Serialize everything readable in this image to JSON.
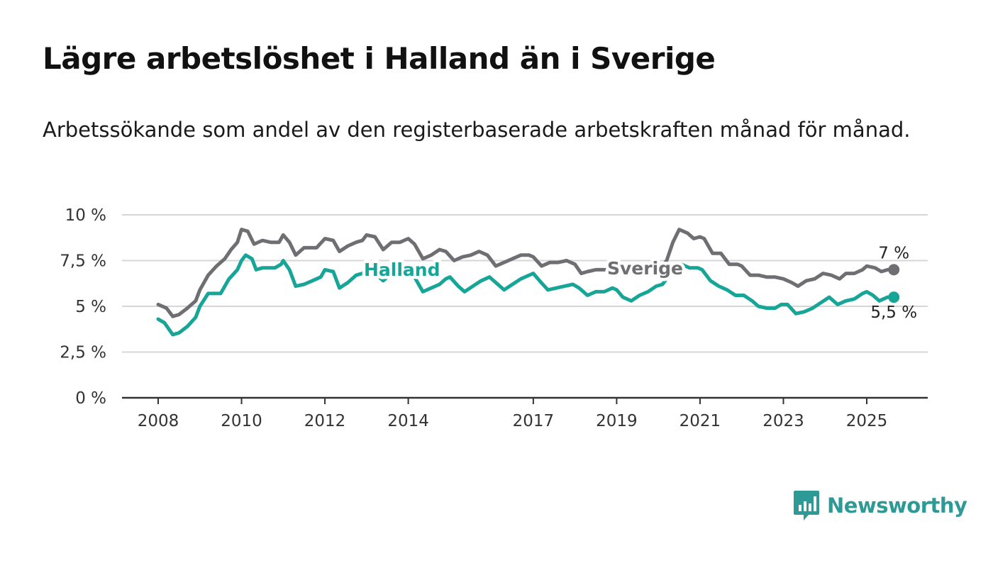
{
  "title": "Lägre arbetslöshet i Halland än i Sverige",
  "subtitle": "Arbetssökande som andel av den registerbaserade arbetskraften månad för månad.",
  "brand": "Newsworthy",
  "colors": {
    "halland": "#17a597",
    "sverige": "#6f6e73",
    "grid": "#d6d6d6",
    "axis": "#333333",
    "brand": "#2e9a96"
  },
  "chart_data": {
    "type": "line",
    "title": "Lägre arbetslöshet i Halland än i Sverige",
    "subtitle": "Arbetssökande som andel av den registerbaserade arbetskraften månad för månad.",
    "xlabel": "",
    "ylabel": "",
    "ylim": [
      0,
      10
    ],
    "xlim": [
      2007.2,
      2026.5
    ],
    "yticks": [
      0,
      2.5,
      5,
      7.5,
      10
    ],
    "ytick_labels": [
      "0 %",
      "2,5 %",
      "5 %",
      "7,5 %",
      "10 %"
    ],
    "xticks": [
      2008,
      2010,
      2012,
      2014,
      2017,
      2019,
      2021,
      2023,
      2025
    ],
    "xtick_labels": [
      "2008",
      "2010",
      "2012",
      "2014",
      "2017",
      "2019",
      "2021",
      "2023",
      "2025"
    ],
    "grid": "horizontal",
    "series": [
      {
        "name": "Sverige",
        "color": "#6f6e73",
        "end_label": "7 %",
        "points": [
          [
            2008.0,
            5.1
          ],
          [
            2008.2,
            4.9
          ],
          [
            2008.35,
            4.45
          ],
          [
            2008.5,
            4.55
          ],
          [
            2008.7,
            4.9
          ],
          [
            2008.9,
            5.3
          ],
          [
            2009.0,
            5.9
          ],
          [
            2009.2,
            6.7
          ],
          [
            2009.4,
            7.2
          ],
          [
            2009.6,
            7.6
          ],
          [
            2009.75,
            8.1
          ],
          [
            2009.9,
            8.5
          ],
          [
            2010.0,
            9.2
          ],
          [
            2010.15,
            9.1
          ],
          [
            2010.3,
            8.4
          ],
          [
            2010.5,
            8.6
          ],
          [
            2010.7,
            8.5
          ],
          [
            2010.9,
            8.5
          ],
          [
            2011.0,
            8.9
          ],
          [
            2011.15,
            8.5
          ],
          [
            2011.3,
            7.8
          ],
          [
            2011.5,
            8.2
          ],
          [
            2011.8,
            8.2
          ],
          [
            2012.0,
            8.7
          ],
          [
            2012.2,
            8.6
          ],
          [
            2012.35,
            8.0
          ],
          [
            2012.55,
            8.3
          ],
          [
            2012.75,
            8.5
          ],
          [
            2012.9,
            8.6
          ],
          [
            2013.0,
            8.9
          ],
          [
            2013.2,
            8.8
          ],
          [
            2013.4,
            8.1
          ],
          [
            2013.6,
            8.5
          ],
          [
            2013.8,
            8.5
          ],
          [
            2014.0,
            8.7
          ],
          [
            2014.15,
            8.4
          ],
          [
            2014.35,
            7.6
          ],
          [
            2014.55,
            7.8
          ],
          [
            2014.75,
            8.1
          ],
          [
            2014.9,
            8.0
          ],
          [
            2015.1,
            7.5
          ],
          [
            2015.3,
            7.7
          ],
          [
            2015.5,
            7.8
          ],
          [
            2015.7,
            8.0
          ],
          [
            2015.9,
            7.8
          ],
          [
            2016.1,
            7.2
          ],
          [
            2016.3,
            7.4
          ],
          [
            2016.5,
            7.6
          ],
          [
            2016.7,
            7.8
          ],
          [
            2016.9,
            7.8
          ],
          [
            2017.0,
            7.7
          ],
          [
            2017.2,
            7.2
          ],
          [
            2017.4,
            7.4
          ],
          [
            2017.6,
            7.4
          ],
          [
            2017.8,
            7.5
          ],
          [
            2018.0,
            7.3
          ],
          [
            2018.15,
            6.8
          ],
          [
            2018.3,
            6.9
          ],
          [
            2018.5,
            7.0
          ],
          [
            2018.7,
            7.0
          ],
          [
            2018.9,
            7.0
          ],
          [
            2019.0,
            6.9
          ],
          [
            2019.3,
            7.0
          ],
          [
            2019.5,
            6.9
          ],
          [
            2019.7,
            7.0
          ],
          [
            2019.9,
            7.1
          ],
          [
            2020.0,
            7.0
          ],
          [
            2020.2,
            7.5
          ],
          [
            2020.35,
            8.5
          ],
          [
            2020.5,
            9.2
          ],
          [
            2020.7,
            9.0
          ],
          [
            2020.85,
            8.7
          ],
          [
            2021.0,
            8.8
          ],
          [
            2021.1,
            8.7
          ],
          [
            2021.3,
            7.9
          ],
          [
            2021.5,
            7.9
          ],
          [
            2021.7,
            7.3
          ],
          [
            2021.9,
            7.3
          ],
          [
            2022.0,
            7.2
          ],
          [
            2022.2,
            6.7
          ],
          [
            2022.4,
            6.7
          ],
          [
            2022.6,
            6.6
          ],
          [
            2022.8,
            6.6
          ],
          [
            2023.0,
            6.5
          ],
          [
            2023.2,
            6.3
          ],
          [
            2023.35,
            6.1
          ],
          [
            2023.55,
            6.4
          ],
          [
            2023.75,
            6.5
          ],
          [
            2023.95,
            6.8
          ],
          [
            2024.15,
            6.7
          ],
          [
            2024.35,
            6.5
          ],
          [
            2024.5,
            6.8
          ],
          [
            2024.7,
            6.8
          ],
          [
            2024.9,
            7.0
          ],
          [
            2025.0,
            7.2
          ],
          [
            2025.2,
            7.1
          ],
          [
            2025.35,
            6.9
          ],
          [
            2025.5,
            7.0
          ],
          [
            2025.65,
            7.0
          ]
        ]
      },
      {
        "name": "Halland",
        "color": "#17a597",
        "end_label": "5,5 %",
        "points": [
          [
            2008.0,
            4.3
          ],
          [
            2008.15,
            4.1
          ],
          [
            2008.35,
            3.45
          ],
          [
            2008.5,
            3.55
          ],
          [
            2008.7,
            3.9
          ],
          [
            2008.9,
            4.4
          ],
          [
            2009.0,
            5.0
          ],
          [
            2009.2,
            5.7
          ],
          [
            2009.5,
            5.7
          ],
          [
            2009.7,
            6.5
          ],
          [
            2009.9,
            7.0
          ],
          [
            2010.0,
            7.5
          ],
          [
            2010.1,
            7.8
          ],
          [
            2010.25,
            7.6
          ],
          [
            2010.35,
            7.0
          ],
          [
            2010.5,
            7.1
          ],
          [
            2010.8,
            7.1
          ],
          [
            2010.95,
            7.3
          ],
          [
            2011.0,
            7.5
          ],
          [
            2011.15,
            7.0
          ],
          [
            2011.3,
            6.1
          ],
          [
            2011.5,
            6.2
          ],
          [
            2011.7,
            6.4
          ],
          [
            2011.9,
            6.6
          ],
          [
            2012.0,
            7.0
          ],
          [
            2012.2,
            6.9
          ],
          [
            2012.35,
            6.0
          ],
          [
            2012.55,
            6.3
          ],
          [
            2012.75,
            6.7
          ],
          [
            2012.9,
            6.8
          ],
          [
            2013.0,
            7.0
          ],
          [
            2013.2,
            6.8
          ],
          [
            2013.4,
            6.4
          ],
          [
            2013.6,
            6.8
          ],
          [
            2013.8,
            6.8
          ],
          [
            2014.0,
            6.9
          ],
          [
            2014.15,
            6.6
          ],
          [
            2014.35,
            5.8
          ],
          [
            2014.55,
            6.0
          ],
          [
            2014.75,
            6.2
          ],
          [
            2014.9,
            6.5
          ],
          [
            2015.0,
            6.6
          ],
          [
            2015.2,
            6.1
          ],
          [
            2015.35,
            5.8
          ],
          [
            2015.55,
            6.1
          ],
          [
            2015.75,
            6.4
          ],
          [
            2015.95,
            6.6
          ],
          [
            2016.1,
            6.3
          ],
          [
            2016.3,
            5.9
          ],
          [
            2016.5,
            6.2
          ],
          [
            2016.7,
            6.5
          ],
          [
            2016.9,
            6.7
          ],
          [
            2017.0,
            6.8
          ],
          [
            2017.15,
            6.4
          ],
          [
            2017.35,
            5.9
          ],
          [
            2017.55,
            6.0
          ],
          [
            2017.75,
            6.1
          ],
          [
            2017.95,
            6.2
          ],
          [
            2018.1,
            6.0
          ],
          [
            2018.3,
            5.6
          ],
          [
            2018.5,
            5.8
          ],
          [
            2018.7,
            5.8
          ],
          [
            2018.9,
            6.0
          ],
          [
            2019.0,
            5.9
          ],
          [
            2019.15,
            5.5
          ],
          [
            2019.35,
            5.3
          ],
          [
            2019.55,
            5.6
          ],
          [
            2019.75,
            5.8
          ],
          [
            2019.95,
            6.1
          ],
          [
            2020.1,
            6.2
          ],
          [
            2020.35,
            7.0
          ],
          [
            2020.55,
            7.3
          ],
          [
            2020.75,
            7.1
          ],
          [
            2020.95,
            7.1
          ],
          [
            2021.05,
            7.0
          ],
          [
            2021.25,
            6.4
          ],
          [
            2021.45,
            6.1
          ],
          [
            2021.65,
            5.9
          ],
          [
            2021.85,
            5.6
          ],
          [
            2022.05,
            5.6
          ],
          [
            2022.25,
            5.3
          ],
          [
            2022.4,
            5.0
          ],
          [
            2022.6,
            4.9
          ],
          [
            2022.8,
            4.9
          ],
          [
            2022.95,
            5.1
          ],
          [
            2023.1,
            5.1
          ],
          [
            2023.3,
            4.6
          ],
          [
            2023.5,
            4.7
          ],
          [
            2023.7,
            4.9
          ],
          [
            2023.9,
            5.2
          ],
          [
            2024.1,
            5.5
          ],
          [
            2024.3,
            5.1
          ],
          [
            2024.5,
            5.3
          ],
          [
            2024.7,
            5.4
          ],
          [
            2024.9,
            5.7
          ],
          [
            2025.0,
            5.8
          ],
          [
            2025.15,
            5.6
          ],
          [
            2025.3,
            5.3
          ],
          [
            2025.5,
            5.5
          ],
          [
            2025.65,
            5.5
          ]
        ]
      }
    ]
  }
}
